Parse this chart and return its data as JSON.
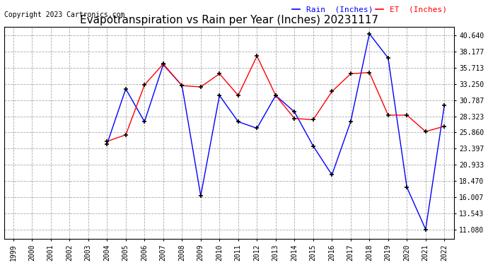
{
  "title": "Evapotranspiration vs Rain per Year (Inches) 20231117",
  "copyright": "Copyright 2023 Cartronics.com",
  "years": [
    1999,
    2000,
    2001,
    2002,
    2003,
    2004,
    2005,
    2006,
    2007,
    2008,
    2009,
    2010,
    2011,
    2012,
    2013,
    2014,
    2015,
    2016,
    2017,
    2018,
    2019,
    2020,
    2021,
    2022
  ],
  "rain": [
    null,
    null,
    null,
    null,
    null,
    24.1,
    32.5,
    27.5,
    36.2,
    33.0,
    16.2,
    31.5,
    27.5,
    26.5,
    31.5,
    29.0,
    23.8,
    19.4,
    27.5,
    40.9,
    37.2,
    17.5,
    11.1,
    30.0
  ],
  "et": [
    null,
    null,
    null,
    null,
    null,
    24.5,
    25.5,
    33.1,
    36.3,
    33.0,
    32.8,
    34.8,
    31.5,
    37.5,
    31.5,
    28.0,
    27.8,
    32.1,
    34.8,
    35.0,
    28.5,
    28.5,
    26.0,
    26.8
  ],
  "rain_color": "#0000ff",
  "et_color": "#ff0000",
  "marker": "+",
  "marker_color": "#000000",
  "grid_color": "#aaaaaa",
  "grid_linestyle": "--",
  "background_color": "#ffffff",
  "y_ticks": [
    11.08,
    13.543,
    16.007,
    18.47,
    20.933,
    23.397,
    25.86,
    28.323,
    30.787,
    33.25,
    35.713,
    38.177,
    40.64
  ],
  "ylim_min": 9.617,
  "ylim_max": 42.0,
  "title_fontsize": 11,
  "tick_fontsize": 7,
  "copyright_fontsize": 7,
  "legend_rain": "Rain  (Inches)",
  "legend_et": "ET  (Inches)"
}
